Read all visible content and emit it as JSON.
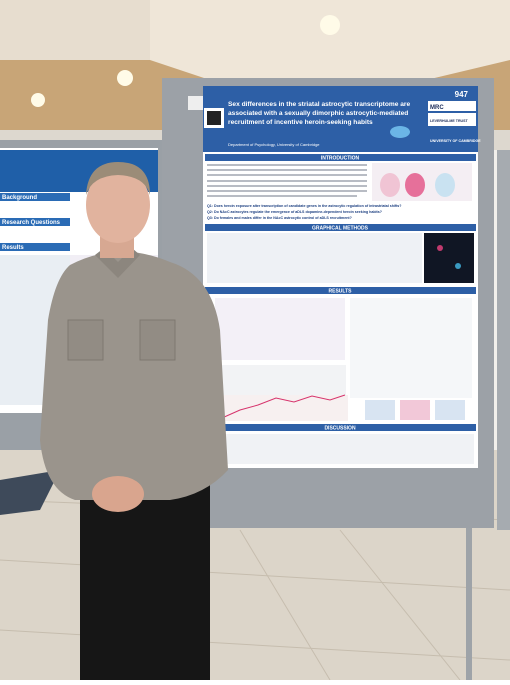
{
  "poster": {
    "number": "947",
    "title_lines": [
      "Sex differences in the striatal astrocytic transcriptome are",
      "associated with a sexually dimorphic astrocytic-mediated",
      "recruitment of incentive heroin-seeking habits"
    ],
    "affiliation": "Department of Psychology, University of Cambridge",
    "logos": [
      "MRC",
      "LEVERHULME TRUST",
      "UNIVERSITY OF CAMBRIDGE"
    ],
    "sections": [
      "INTRODUCTION",
      "GRAPHICAL METHODS",
      "RESULTS",
      "DISCUSSION"
    ],
    "questions": [
      "Q1: Does heroin exposure alter transcription of candidate genes in the astrocytic regulation of intrastriatal shifts?",
      "Q2: Do NAcC astrocytes regulate the emergence of aDLS dopamine-dependent heroin seeking habits?",
      "Q3: Do females and males differ in the NAcC astrocytic control of aDLS recruitment?"
    ]
  },
  "left_poster": {
    "sections": [
      "Background",
      "Research Questions",
      "Results"
    ]
  }
}
